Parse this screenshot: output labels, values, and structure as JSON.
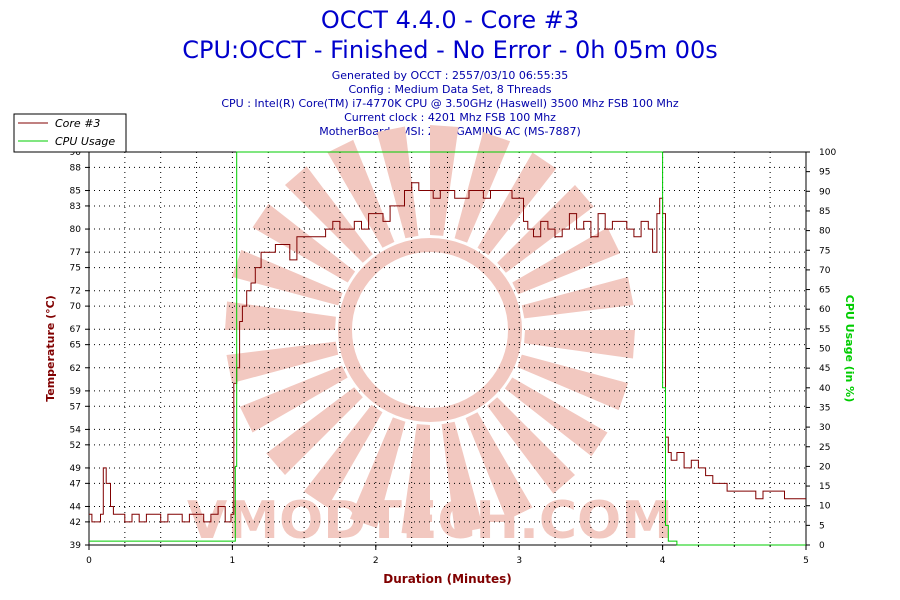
{
  "header": {
    "title": "OCCT 4.4.0 - Core #3",
    "subtitle": "CPU:OCCT - Finished - No Error - 0h 05m 00s",
    "info": [
      "Generated by OCCT : 2557/03/10 06:55:35",
      "Config : Medium Data Set, 8 Threads",
      "CPU : Intel(R) Core(TM) i7-4770K CPU @ 3.50GHz (Haswell) 3500 Mhz FSB 100 Mhz",
      "Current clock : 4201 Mhz FSB 100 Mhz",
      "MotherBoard : MSI: Z87I GAMING AC (MS-7887)"
    ]
  },
  "colors": {
    "core": "#800000",
    "cpu_usage": "#00cc00",
    "title": "#0000cc",
    "left_axis": "#800000",
    "right_axis": "#00cc00",
    "watermark": "#f2c8c0"
  },
  "watermark": "VMODTECH.COM",
  "chart_data": {
    "type": "line",
    "title": "OCCT 4.4.0 - Core #3",
    "xlabel": "Duration (Minutes)",
    "ylabel": "Temperature (°C)",
    "y2label": "CPU Usage (in %)",
    "xlim": [
      0,
      5
    ],
    "ylim": [
      39,
      90
    ],
    "y2lim": [
      0,
      100
    ],
    "x_ticks": [
      "0",
      "1",
      "2",
      "3",
      "4",
      "5"
    ],
    "y_ticks": [
      "39",
      "42",
      "44",
      "47",
      "49",
      "52",
      "54",
      "57",
      "59",
      "62",
      "65",
      "67",
      "70",
      "72",
      "75",
      "77",
      "80",
      "83",
      "85",
      "88",
      "90"
    ],
    "y2_ticks": [
      "0",
      "5",
      "10",
      "15",
      "20",
      "25",
      "30",
      "35",
      "40",
      "45",
      "50",
      "55",
      "60",
      "65",
      "70",
      "75",
      "80",
      "85",
      "90",
      "95",
      "100"
    ],
    "grid": true,
    "legend": "top-left",
    "series": [
      {
        "name": "Core #3",
        "axis": "left",
        "x": [
          0,
          0.02,
          0.05,
          0.08,
          0.1,
          0.12,
          0.13,
          0.15,
          0.17,
          0.2,
          0.25,
          0.3,
          0.35,
          0.4,
          0.45,
          0.5,
          0.55,
          0.6,
          0.65,
          0.7,
          0.75,
          0.8,
          0.85,
          0.9,
          0.95,
          0.99,
          1.01,
          1.03,
          1.05,
          1.07,
          1.1,
          1.13,
          1.16,
          1.2,
          1.25,
          1.3,
          1.35,
          1.4,
          1.45,
          1.5,
          1.55,
          1.6,
          1.65,
          1.7,
          1.75,
          1.8,
          1.85,
          1.9,
          1.95,
          2.0,
          2.05,
          2.1,
          2.15,
          2.2,
          2.25,
          2.3,
          2.35,
          2.4,
          2.45,
          2.5,
          2.55,
          2.6,
          2.65,
          2.7,
          2.75,
          2.8,
          2.85,
          2.9,
          2.95,
          3.0,
          3.03,
          3.06,
          3.1,
          3.15,
          3.2,
          3.25,
          3.3,
          3.35,
          3.4,
          3.45,
          3.5,
          3.55,
          3.6,
          3.65,
          3.7,
          3.75,
          3.8,
          3.85,
          3.9,
          3.93,
          3.96,
          3.98,
          4.0,
          4.02,
          4.04,
          4.06,
          4.1,
          4.15,
          4.2,
          4.25,
          4.3,
          4.35,
          4.4,
          4.45,
          4.5,
          4.55,
          4.6,
          4.65,
          4.7,
          4.75,
          4.8,
          4.85,
          4.9,
          4.95,
          5.0
        ],
        "values": [
          43,
          42,
          42,
          43,
          49,
          47,
          47,
          44,
          43,
          43,
          42,
          43,
          42,
          43,
          43,
          42,
          43,
          43,
          42,
          43,
          43,
          42,
          43,
          44,
          42,
          43,
          60,
          62,
          68,
          70,
          72,
          73,
          75,
          77,
          77,
          78,
          78,
          76,
          79,
          79,
          79,
          79,
          80,
          81,
          80,
          80,
          81,
          80,
          82,
          82,
          81,
          83,
          83,
          85,
          86,
          85,
          85,
          84,
          85,
          85,
          84,
          84,
          85,
          85,
          84,
          85,
          85,
          85,
          84,
          84,
          81,
          80,
          79,
          81,
          80,
          79,
          80,
          82,
          80,
          81,
          79,
          82,
          80,
          81,
          81,
          80,
          79,
          81,
          80,
          77,
          82,
          84,
          82,
          53,
          51,
          50,
          51,
          49,
          50,
          49,
          48,
          47,
          47,
          46,
          46,
          46,
          46,
          45,
          46,
          46,
          46,
          45,
          45,
          45,
          45
        ]
      },
      {
        "name": "CPU Usage",
        "axis": "right",
        "x": [
          0,
          0.3,
          0.5,
          0.8,
          1.0,
          1.02,
          1.03,
          1.05,
          1.5,
          2.0,
          2.5,
          3.0,
          3.5,
          3.98,
          4.0,
          4.02,
          4.04,
          4.1,
          4.5,
          5.0
        ],
        "values": [
          1,
          1,
          1,
          1,
          1,
          20,
          100,
          100,
          100,
          100,
          100,
          100,
          100,
          100,
          40,
          5,
          1,
          0,
          0,
          0
        ]
      }
    ]
  }
}
